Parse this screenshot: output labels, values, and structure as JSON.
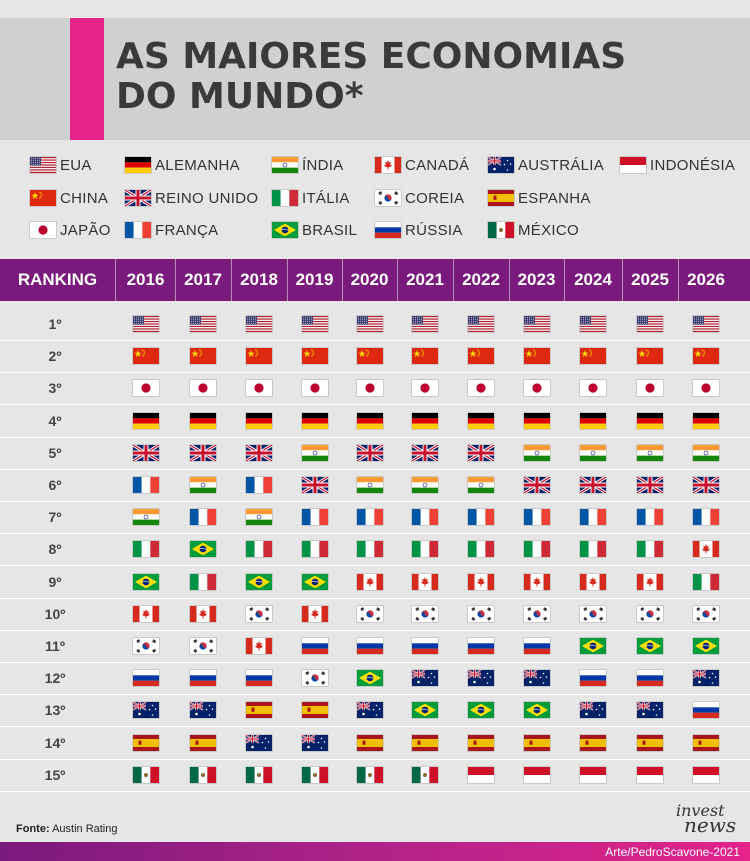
{
  "title": {
    "line1": "AS MAIORES ECONOMIAS",
    "line2": "DO MUNDO*"
  },
  "legend": [
    {
      "code": "US",
      "label": "EUA"
    },
    {
      "code": "DE",
      "label": "ALEMANHA"
    },
    {
      "code": "IN",
      "label": "ÍNDIA"
    },
    {
      "code": "CA",
      "label": "CANADÁ"
    },
    {
      "code": "AU",
      "label": "AUSTRÁLIA"
    },
    {
      "code": "ID",
      "label": "INDONÉSIA"
    },
    {
      "code": "CN",
      "label": "CHINA"
    },
    {
      "code": "GB",
      "label": "REINO UNIDO"
    },
    {
      "code": "IT",
      "label": "ITÁLIA"
    },
    {
      "code": "KR",
      "label": "COREIA"
    },
    {
      "code": "ES",
      "label": "ESPANHA"
    },
    {
      "code": "JP",
      "label": "JAPÃO"
    },
    {
      "code": "FR",
      "label": "FRANÇA"
    },
    {
      "code": "BR",
      "label": "BRASIL"
    },
    {
      "code": "RU",
      "label": "RÚSSIA"
    },
    {
      "code": "MX",
      "label": "MÉXICO"
    }
  ],
  "table": {
    "ranking_header": "RANKING",
    "years": [
      "2016",
      "2017",
      "2018",
      "2019",
      "2020",
      "2021",
      "2022",
      "2023",
      "2024",
      "2025",
      "2026"
    ],
    "ranks": [
      "1º",
      "2º",
      "3º",
      "4º",
      "5º",
      "6º",
      "7º",
      "8º",
      "9º",
      "10º",
      "11º",
      "12º",
      "13º",
      "14º",
      "15º"
    ],
    "grid": [
      [
        "US",
        "US",
        "US",
        "US",
        "US",
        "US",
        "US",
        "US",
        "US",
        "US",
        "US"
      ],
      [
        "CN",
        "CN",
        "CN",
        "CN",
        "CN",
        "CN",
        "CN",
        "CN",
        "CN",
        "CN",
        "CN"
      ],
      [
        "JP",
        "JP",
        "JP",
        "JP",
        "JP",
        "JP",
        "JP",
        "JP",
        "JP",
        "JP",
        "JP"
      ],
      [
        "DE",
        "DE",
        "DE",
        "DE",
        "DE",
        "DE",
        "DE",
        "DE",
        "DE",
        "DE",
        "DE"
      ],
      [
        "GB",
        "GB",
        "GB",
        "IN",
        "GB",
        "GB",
        "GB",
        "IN",
        "IN",
        "IN",
        "IN"
      ],
      [
        "FR",
        "IN",
        "FR",
        "GB",
        "IN",
        "IN",
        "IN",
        "GB",
        "GB",
        "GB",
        "GB"
      ],
      [
        "IN",
        "FR",
        "IN",
        "FR",
        "FR",
        "FR",
        "FR",
        "FR",
        "FR",
        "FR",
        "FR"
      ],
      [
        "IT",
        "BR",
        "IT",
        "IT",
        "IT",
        "IT",
        "IT",
        "IT",
        "IT",
        "IT",
        "CA"
      ],
      [
        "BR",
        "IT",
        "BR",
        "BR",
        "CA",
        "CA",
        "CA",
        "CA",
        "CA",
        "CA",
        "IT"
      ],
      [
        "CA",
        "CA",
        "KR",
        "CA",
        "KR",
        "KR",
        "KR",
        "KR",
        "KR",
        "KR",
        "KR"
      ],
      [
        "KR",
        "KR",
        "CA",
        "RU",
        "RU",
        "RU",
        "RU",
        "RU",
        "BR",
        "BR",
        "BR"
      ],
      [
        "RU",
        "RU",
        "RU",
        "KR",
        "BR",
        "AU",
        "AU",
        "AU",
        "RU",
        "RU",
        "AU"
      ],
      [
        "AU",
        "AU",
        "ES",
        "ES",
        "AU",
        "BR",
        "BR",
        "BR",
        "AU",
        "AU",
        "RU"
      ],
      [
        "ES",
        "ES",
        "AU",
        "AU",
        "ES",
        "ES",
        "ES",
        "ES",
        "ES",
        "ES",
        "ES"
      ],
      [
        "MX",
        "MX",
        "MX",
        "MX",
        "MX",
        "MX",
        "ID",
        "ID",
        "ID",
        "ID",
        "ID"
      ]
    ]
  },
  "footer": {
    "source_label": "Fonte:",
    "source_value": "Austin Rating",
    "credit": "Arte/PedroScavone-2021",
    "logo_line1": "invest",
    "logo_line2": "news"
  },
  "colors": {
    "accent_pink": "#e4238b",
    "header_purple": "#7a1a7d",
    "title_gray": "#d0d0d0",
    "background": "#e6e6e6"
  }
}
